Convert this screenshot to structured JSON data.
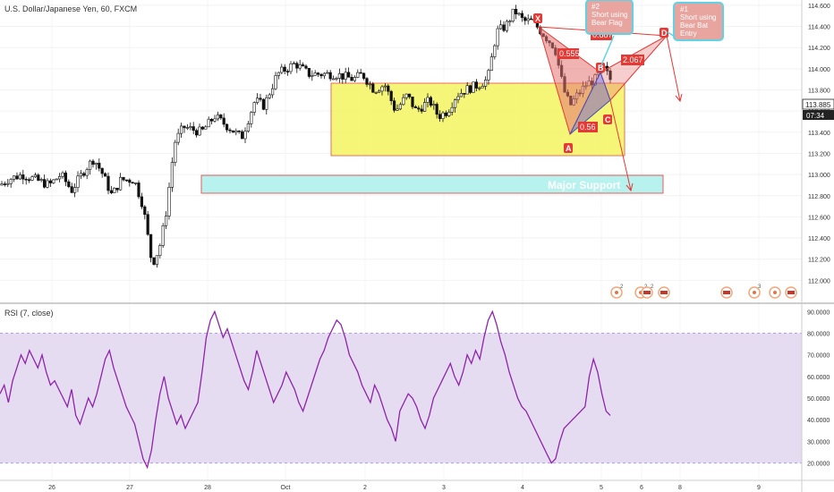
{
  "header": {
    "symbol_title": "U.S. Dollar/Japanese Yen, 60, FXCM"
  },
  "rsi_panel": {
    "title": "RSI (7, close)"
  },
  "price_scale": {
    "ticks": [
      "114.600",
      "114.400",
      "114.200",
      "114.000",
      "113.800",
      "113.600",
      "113.400",
      "113.200",
      "113.000",
      "112.800",
      "112.600",
      "112.400",
      "112.200",
      "112.000"
    ],
    "last_price": "113.885",
    "countdown": "07:34"
  },
  "rsi_scale": {
    "ticks": [
      "90.0000",
      "80.0000",
      "70.0000",
      "60.0000",
      "50.0000",
      "40.0000",
      "30.0000",
      "20.0000"
    ],
    "band": [
      20,
      80
    ]
  },
  "time_axis": {
    "labels": [
      "26",
      "27",
      "28",
      "Oct",
      "2",
      "3",
      "4",
      "5",
      "6",
      "8",
      "9"
    ]
  },
  "annotations": {
    "major_support": "Major Support",
    "point_x": "X",
    "point_a": "A",
    "point_b": "B",
    "point_c": "C",
    "point_d": "D",
    "ratio_xab": "0.555",
    "ratio_abc": "0.56",
    "ratio_bcd": "2.067",
    "ratio_xad": "0.887",
    "callout_1": [
      "#1",
      "Short using",
      "Bear Bat",
      "Entry"
    ],
    "callout_2": [
      "#2",
      "Short using",
      "Bear Flag"
    ],
    "event_counts": [
      "2",
      "2",
      "2",
      "3"
    ]
  },
  "colors": {
    "up": "#ffffff",
    "down": "#111111",
    "wick": "#111111",
    "resistance_zone": "#f5f56a",
    "support_zone": "#b8f2ee",
    "pattern_red": "#e53935",
    "pattern_blue": "#3f51b5",
    "rsi_line": "#8e24aa",
    "rsi_band": "#e6dcf2",
    "callout": "#e8a5a0",
    "callout_border": "#5fd3e5"
  },
  "chart_data": [
    {
      "type": "candlestick",
      "title": "U.S. Dollar/Japanese Yen, 60, FXCM",
      "ylim": [
        111.8,
        114.65
      ],
      "x_labels": [
        "26",
        "27",
        "28",
        "Oct",
        "2",
        "3",
        "4",
        "5",
        "6",
        "8",
        "9"
      ],
      "close_path_keypoints": [
        [
          0,
          112.9
        ],
        [
          8,
          112.95
        ],
        [
          25,
          113.0
        ],
        [
          40,
          112.95
        ],
        [
          55,
          112.9
        ],
        [
          68,
          113.0
        ],
        [
          80,
          112.85
        ],
        [
          95,
          113.05
        ],
        [
          105,
          113.15
        ],
        [
          115,
          113.0
        ],
        [
          125,
          112.8
        ],
        [
          135,
          112.95
        ],
        [
          150,
          112.95
        ],
        [
          160,
          112.7
        ],
        [
          170,
          112.15
        ],
        [
          178,
          112.3
        ],
        [
          185,
          112.6
        ],
        [
          195,
          113.3
        ],
        [
          205,
          113.45
        ],
        [
          225,
          113.4
        ],
        [
          240,
          113.55
        ],
        [
          255,
          113.45
        ],
        [
          270,
          113.35
        ],
        [
          285,
          113.7
        ],
        [
          295,
          113.65
        ],
        [
          310,
          113.95
        ],
        [
          330,
          114.05
        ],
        [
          345,
          113.95
        ],
        [
          360,
          113.95
        ],
        [
          375,
          113.95
        ],
        [
          395,
          113.9
        ],
        [
          405,
          113.95
        ],
        [
          418,
          113.8
        ],
        [
          430,
          113.85
        ],
        [
          442,
          113.6
        ],
        [
          455,
          113.75
        ],
        [
          465,
          113.6
        ],
        [
          480,
          113.7
        ],
        [
          490,
          113.55
        ],
        [
          500,
          113.6
        ],
        [
          510,
          113.75
        ],
        [
          520,
          113.8
        ],
        [
          535,
          113.85
        ],
        [
          545,
          113.9
        ],
        [
          555,
          114.35
        ],
        [
          565,
          114.4
        ],
        [
          575,
          114.55
        ],
        [
          585,
          114.45
        ],
        [
          595,
          114.45
        ],
        [
          605,
          114.35
        ],
        [
          620,
          114.2
        ],
        [
          630,
          113.8
        ],
        [
          637,
          113.65
        ],
        [
          645,
          113.75
        ],
        [
          655,
          113.85
        ],
        [
          665,
          113.9
        ],
        [
          675,
          114.0
        ],
        [
          682,
          113.9
        ]
      ],
      "zones": [
        {
          "name": "Resistance range",
          "from": 113.52,
          "to": 114.05,
          "x_start": 370,
          "x_end": 698
        },
        {
          "name": "Major Support",
          "from": 113.26,
          "to": 113.38,
          "x_start": 225,
          "x_end": 741
        }
      ],
      "harmonic_pattern": {
        "points": {
          "X": 114.48,
          "A": 113.63,
          "B": 114.09,
          "C": 113.91,
          "D": 114.43
        },
        "ratios": {
          "XAB": 0.555,
          "ABC": 0.56,
          "BCD": 2.067,
          "XAD": 0.887
        }
      }
    },
    {
      "type": "line",
      "title": "RSI (7, close)",
      "ylim": [
        12,
        93
      ],
      "band": [
        20,
        80
      ],
      "values": [
        52,
        56,
        48,
        58,
        64,
        70,
        66,
        72,
        68,
        64,
        70,
        62,
        56,
        58,
        54,
        50,
        46,
        54,
        42,
        38,
        44,
        50,
        46,
        52,
        60,
        68,
        72,
        64,
        58,
        52,
        46,
        42,
        38,
        30,
        22,
        18,
        26,
        40,
        52,
        60,
        50,
        44,
        38,
        42,
        36,
        40,
        44,
        48,
        62,
        78,
        86,
        90,
        84,
        78,
        82,
        76,
        70,
        64,
        58,
        54,
        62,
        72,
        66,
        60,
        54,
        48,
        52,
        56,
        62,
        58,
        54,
        48,
        44,
        50,
        56,
        62,
        68,
        72,
        78,
        82,
        86,
        84,
        78,
        70,
        66,
        62,
        56,
        52,
        48,
        56,
        52,
        46,
        40,
        36,
        30,
        44,
        48,
        52,
        50,
        46,
        40,
        36,
        42,
        50,
        54,
        58,
        62,
        66,
        60,
        56,
        62,
        70,
        66,
        72,
        68,
        78,
        86,
        90,
        84,
        76,
        70,
        62,
        56,
        50,
        46,
        44,
        40,
        36,
        32,
        28,
        24,
        20,
        22,
        30,
        36,
        38,
        40,
        42,
        44,
        46,
        60,
        68,
        62,
        52,
        44,
        42
      ]
    }
  ]
}
